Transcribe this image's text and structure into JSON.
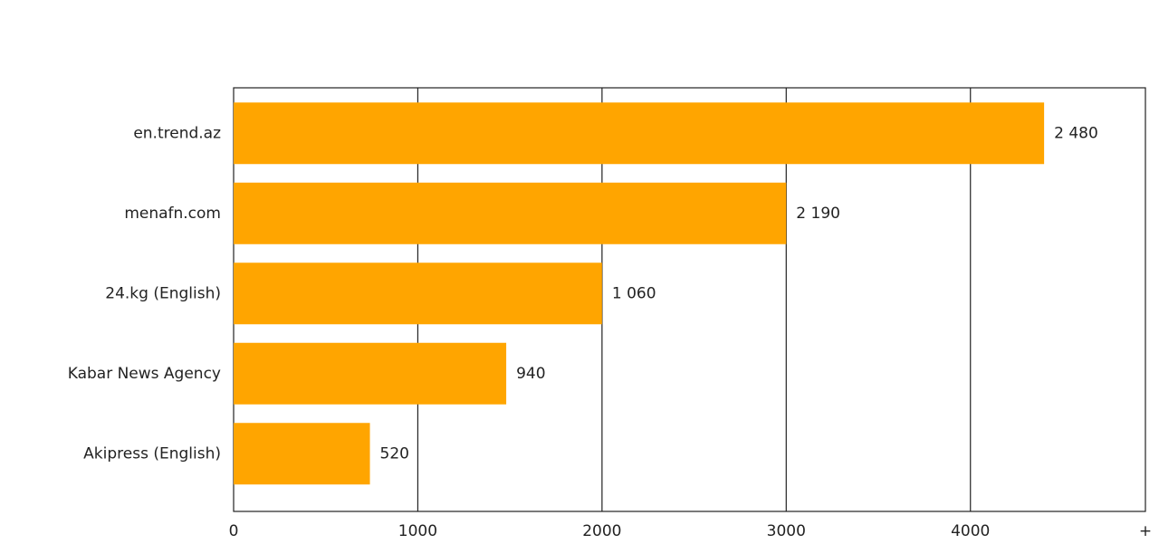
{
  "chart_data": {
    "type": "barh",
    "categories": [
      "en.trend.az",
      "menafn.com",
      "24.kg (English)",
      "Kabar News Agency",
      "Akipress (English)"
    ],
    "values": [
      4400,
      3000,
      2000,
      1480,
      740
    ],
    "annotations": [
      "2 480",
      "2 190",
      "1 060",
      "940",
      "520"
    ],
    "color": "#ffa500",
    "xlim": [
      0,
      4950
    ],
    "xticks": [
      0,
      1000,
      2000,
      3000,
      4000,
      {
        "value": 4950,
        "label": "+"
      }
    ],
    "grid": true
  }
}
